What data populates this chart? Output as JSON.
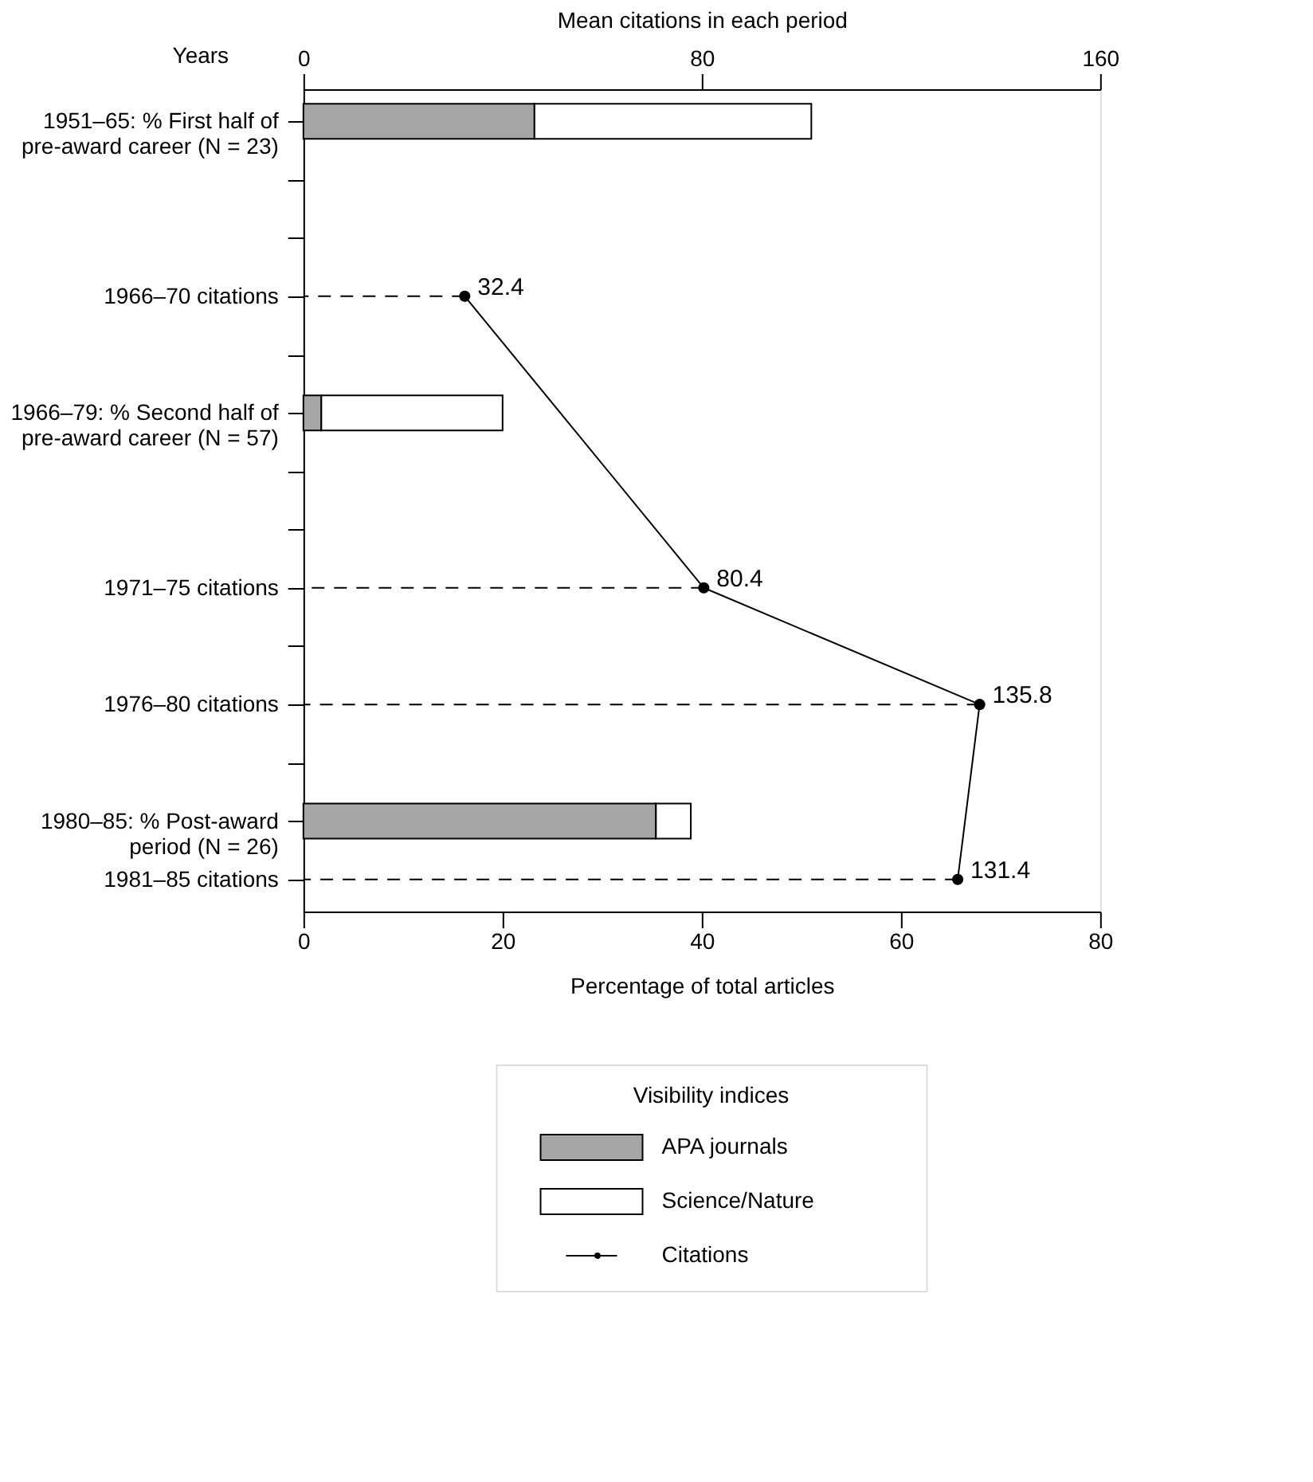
{
  "chart_data": {
    "type": "bar",
    "orientation": "horizontal",
    "stacked": true,
    "categories": [
      "1951–65: % First half of pre-award career (N = 23)",
      null,
      null,
      "1966–70 citations",
      null,
      "1966–79: % Second half of pre-award career (N = 57)",
      null,
      null,
      "1971–75 citations",
      null,
      "1976–80 citations",
      null,
      "1980–85: % Post-award period (N = 26)",
      "1981–85 citations"
    ],
    "ylabel": "Years",
    "xlabel": "Percentage of total articles",
    "x2label": "Mean citations in each period",
    "xlim": [
      0,
      80
    ],
    "xticks": [
      0,
      20,
      40,
      60,
      80
    ],
    "x2lim": [
      0,
      160
    ],
    "x2ticks": [
      0,
      80,
      160
    ],
    "legend": "bottom",
    "legend_title": "Visibility indices",
    "series": [
      {
        "name": "APA journals",
        "color": "#a6a6a6",
        "values": [
          23.2,
          null,
          null,
          null,
          null,
          1.8,
          null,
          null,
          null,
          null,
          null,
          null,
          35.4,
          null
        ]
      },
      {
        "name": "Science/Nature",
        "color": "#ffffff",
        "values": [
          27.8,
          null,
          null,
          null,
          null,
          18.2,
          null,
          null,
          null,
          null,
          null,
          null,
          3.5,
          null
        ]
      },
      {
        "name": "Citations",
        "type": "line",
        "axis": "x2",
        "color": "#000000",
        "marker": "circle",
        "data_labels": true,
        "values": [
          null,
          null,
          null,
          32.4,
          null,
          null,
          null,
          null,
          80.4,
          null,
          135.8,
          null,
          null,
          131.4
        ]
      }
    ]
  }
}
